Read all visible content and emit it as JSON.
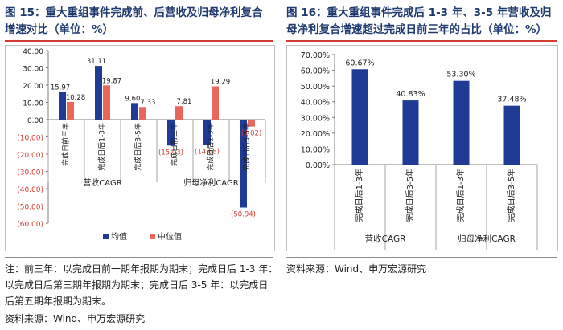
{
  "left": {
    "title_line1": "图 15：重大重组事件完成前、后营收及归母净利复合",
    "title_line2": "增速对比（单位：%）",
    "notes": [
      "注：前三年：以完成日前一期年报期为期末；完成日后 1-3 年：",
      "以完成日后第三期年报期为期末；完成日后 3-5 年：以完成日",
      "后第五期年报期为期末。",
      "资料来源：Wind、申万宏源研究"
    ]
  },
  "right": {
    "title_line1": "图 16：重大重组事件完成后 1-3 年、3-5 年营收及归",
    "title_line2": "母净利复合增速超过完成日前三年的占比（单位：%）",
    "source": "资料来源：Wind、申万宏源研究"
  },
  "colors": {
    "navy": "#1f3b95",
    "salmon": "#e8675d",
    "negative_label": "#d63b2f",
    "title": "#1f3a6e",
    "rule": "#d63b2f"
  },
  "chart_data": [
    {
      "type": "bar",
      "categories": [
        "完成日前三年",
        "完成日后1-3年",
        "完成日后3-5年",
        "完成日前三年",
        "完成日后1-3年",
        "完成日后3-5年"
      ],
      "groups": [
        {
          "label": "营收CAGR",
          "categories": [
            "完成日前三年",
            "完成日后1-3年",
            "完成日后3-5年"
          ]
        },
        {
          "label": "归母净利CAGR",
          "categories": [
            "完成日前三年",
            "完成日后1-3年",
            "完成日后3-5年"
          ]
        }
      ],
      "series": [
        {
          "name": "均值",
          "color": "#1f3b95",
          "values": [
            15.97,
            31.11,
            9.6,
            -15.03,
            -14.68,
            -50.94
          ],
          "labels": [
            "15.97",
            "31.11",
            "9.60",
            "(15.03)",
            "(14.68)",
            "(50.94)"
          ]
        },
        {
          "name": "中位值",
          "color": "#e8675d",
          "values": [
            10.28,
            19.87,
            7.33,
            7.81,
            19.29,
            -4.02
          ],
          "labels": [
            "10.28",
            "19.87",
            "7.33",
            "7.81",
            "19.29",
            "(4.02)"
          ]
        }
      ],
      "yticks": [
        "40.00",
        "30.00",
        "20.00",
        "10.00",
        "0.00",
        "(10.00)",
        "(20.00)",
        "(30.00)",
        "(40.00)",
        "(50.00)",
        "(60.00)"
      ],
      "ylim": [
        -60,
        40
      ],
      "legend_position": "bottom",
      "grid": false
    },
    {
      "type": "bar",
      "categories": [
        "完成日后1-3年",
        "完成日后3-5年",
        "完成日后1-3年",
        "完成日后3-5年"
      ],
      "groups": [
        {
          "label": "营收CAGR",
          "categories": [
            "完成日后1-3年",
            "完成日后3-5年"
          ]
        },
        {
          "label": "归母净利CAGR",
          "categories": [
            "完成日后1-3年",
            "完成日后3-5年"
          ]
        }
      ],
      "values": [
        60.67,
        40.83,
        53.3,
        37.48
      ],
      "labels": [
        "60.67%",
        "40.83%",
        "53.30%",
        "37.48%"
      ],
      "color": "#1f3b95",
      "yticks": [
        "70.00%",
        "60.00%",
        "50.00%",
        "40.00%",
        "30.00%",
        "20.00%",
        "10.00%",
        "0.00%"
      ],
      "ylim": [
        0,
        70
      ],
      "grid": false
    }
  ]
}
